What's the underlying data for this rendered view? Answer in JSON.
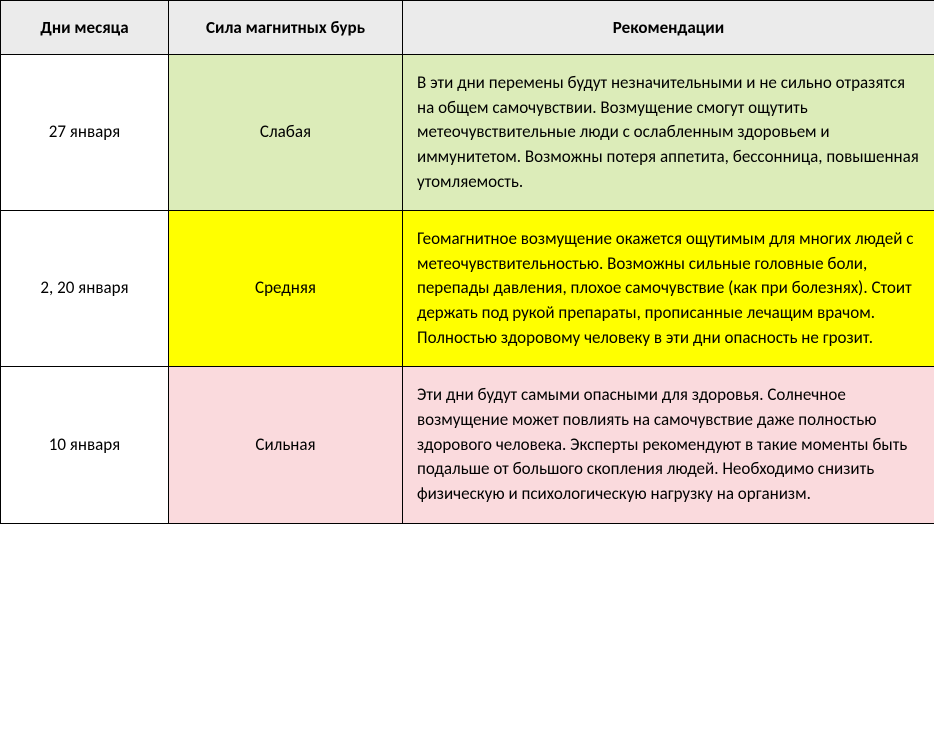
{
  "table": {
    "headers": {
      "days": "Дни месяца",
      "strength": "Сила магнитных бурь",
      "recommendations": "Рекомендации"
    },
    "rows": [
      {
        "days": "27 января",
        "strength": "Слабая",
        "recommendations": "В эти дни перемены будут незначительными и не сильно отразятся на общем самочувствии. Возмущение смогут ощутить метеочувствительные люди с ослабленным здоровьем и иммунитетом. Возможны потеря аппетита, бессонница, повышенная утомляемость.",
        "bg_class": "bg-weak"
      },
      {
        "days": "2, 20 января",
        "strength": "Средняя",
        "recommendations": "Геомагнитное возмущение окажется ощутимым для многих людей с метеочувствительностью. Возможны сильные головные боли, перепады давления, плохое самочувствие (как при болезнях). Стоит держать под рукой препараты, прописанные лечащим врачом. Полностью здоровому человеку в эти дни опасность не грозит.",
        "bg_class": "bg-medium"
      },
      {
        "days": "10 января",
        "strength": "Сильная",
        "recommendations": "Эти дни будут самыми опасными для здоровья. Солнечное возмущение может повлиять на самочувствие даже полностью здорового человека. Эксперты рекомендуют в такие моменты быть подальше от большого скопления людей. Необходимо снизить физическую и психологическую нагрузку на организм.",
        "bg_class": "bg-strong"
      }
    ],
    "colors": {
      "header_bg": "#ebebeb",
      "weak_bg": "#dcecb9",
      "medium_bg": "#ffff00",
      "strong_bg": "#fadadd",
      "border": "#000000",
      "text": "#000000"
    },
    "column_widths": {
      "days": 168,
      "strength": 234,
      "recommendations": 532
    },
    "font_size": 17,
    "header_font_size": 17
  }
}
